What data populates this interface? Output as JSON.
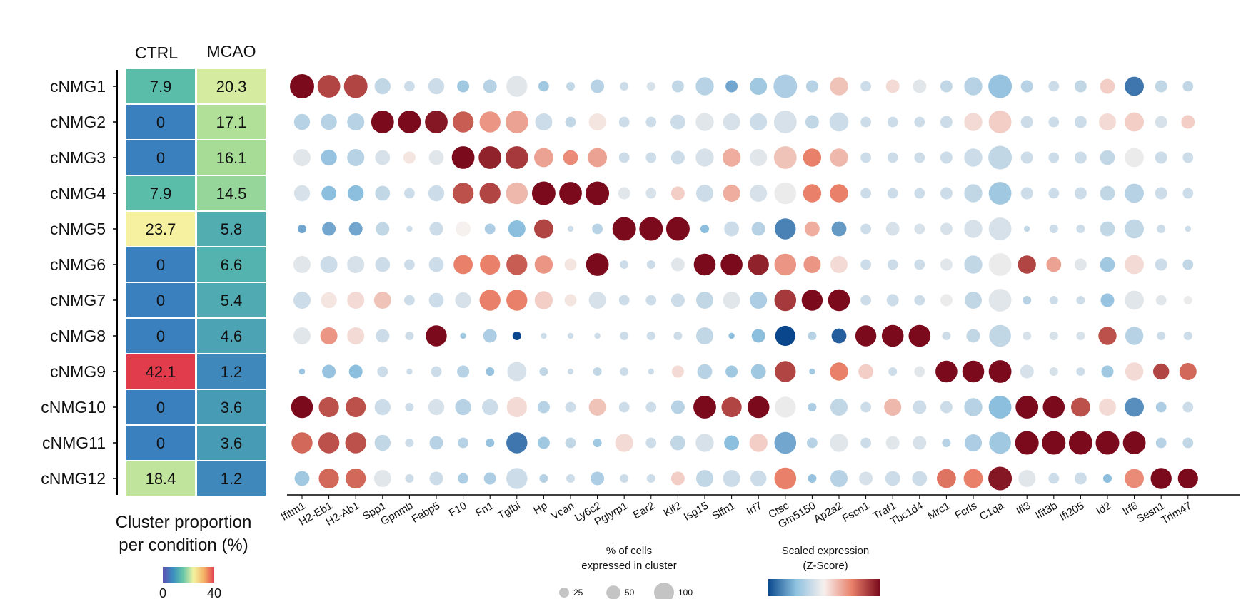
{
  "chart_data": [
    {
      "type": "heatmap",
      "title": "",
      "columns": [
        "CTRL",
        "MCAO"
      ],
      "rows": [
        "cNMG1",
        "cNMG2",
        "cNMG3",
        "cNMG4",
        "cNMG5",
        "cNMG6",
        "cNMG7",
        "cNMG8",
        "cNMG9",
        "cNMG10",
        "cNMG11",
        "cNMG12"
      ],
      "values": [
        [
          "7.9",
          "20.3"
        ],
        [
          "0",
          "17.1"
        ],
        [
          "0",
          "16.1"
        ],
        [
          "7.9",
          "14.5"
        ],
        [
          "23.7",
          "5.8"
        ],
        [
          "0",
          "6.6"
        ],
        [
          "0",
          "5.4"
        ],
        [
          "0",
          "4.6"
        ],
        [
          "42.1",
          "1.2"
        ],
        [
          "0",
          "3.6"
        ],
        [
          "0",
          "3.6"
        ],
        [
          "18.4",
          "1.2"
        ]
      ],
      "xlabel": "Cluster proportion per condition (%)",
      "xlabel_lines": [
        "Cluster proportion",
        "per condition (%)"
      ],
      "colorbar": {
        "min": 0,
        "max": 40,
        "tick_labels": [
          "0",
          "40"
        ]
      }
    },
    {
      "type": "scatter",
      "subtype": "dot-plot",
      "genes": [
        "Ifitm1",
        "H2-Eb1",
        "H2-Ab1",
        "Spp1",
        "Gpnmb",
        "Fabp5",
        "F10",
        "Fn1",
        "Tgfbi",
        "Hp",
        "Vcan",
        "Ly6c2",
        "Pglyrp1",
        "Ear2",
        "Klf2",
        "Isg15",
        "Slfn1",
        "Irf7",
        "Ctsc",
        "Gm5150",
        "Ap2a2",
        "Fscn1",
        "Traf1",
        "Tbc1d4",
        "Mrc1",
        "Fcrls",
        "C1qa",
        "Ifi3",
        "Ifit3b",
        "Ifi205",
        "Id2",
        "Irf8",
        "Sesn1",
        "Trim47"
      ],
      "clusters": [
        "cNMG1",
        "cNMG2",
        "cNMG3",
        "cNMG4",
        "cNMG5",
        "cNMG6",
        "cNMG7",
        "cNMG8",
        "cNMG9",
        "cNMG10",
        "cNMG11",
        "cNMG12"
      ],
      "pct_expressed": [
        [
          80,
          70,
          75,
          35,
          15,
          35,
          20,
          25,
          60,
          15,
          10,
          25,
          10,
          10,
          20,
          45,
          20,
          40,
          75,
          20,
          45,
          15,
          25,
          25,
          20,
          45,
          75,
          20,
          15,
          20,
          30,
          50,
          20,
          15
        ],
        [
          35,
          35,
          40,
          70,
          70,
          70,
          60,
          60,
          70,
          40,
          15,
          40,
          15,
          15,
          30,
          45,
          40,
          40,
          70,
          25,
          50,
          15,
          15,
          15,
          20,
          45,
          70,
          20,
          15,
          20,
          40,
          50,
          20,
          25
        ],
        [
          40,
          35,
          40,
          30,
          20,
          30,
          70,
          70,
          70,
          50,
          30,
          50,
          15,
          15,
          25,
          45,
          45,
          40,
          70,
          45,
          45,
          15,
          15,
          15,
          20,
          45,
          75,
          20,
          15,
          20,
          30,
          50,
          20,
          15
        ],
        [
          35,
          30,
          35,
          30,
          15,
          35,
          60,
          60,
          65,
          75,
          70,
          75,
          20,
          15,
          25,
          40,
          40,
          40,
          65,
          45,
          45,
          15,
          15,
          15,
          20,
          45,
          70,
          20,
          15,
          20,
          30,
          50,
          20,
          15
        ],
        [
          10,
          25,
          25,
          25,
          5,
          25,
          30,
          15,
          40,
          50,
          5,
          15,
          75,
          75,
          75,
          10,
          30,
          25,
          60,
          30,
          30,
          15,
          25,
          15,
          20,
          45,
          70,
          5,
          10,
          10,
          30,
          50,
          10,
          5
        ],
        [
          40,
          40,
          40,
          30,
          15,
          30,
          50,
          55,
          60,
          45,
          20,
          70,
          10,
          10,
          25,
          65,
          65,
          60,
          65,
          40,
          40,
          15,
          15,
          15,
          20,
          45,
          70,
          45,
          30,
          20,
          30,
          50,
          20,
          15
        ],
        [
          40,
          35,
          40,
          40,
          15,
          30,
          35,
          60,
          60,
          45,
          20,
          40,
          15,
          15,
          25,
          40,
          40,
          40,
          65,
          60,
          65,
          15,
          20,
          15,
          20,
          40,
          70,
          10,
          10,
          10,
          25,
          50,
          15,
          10
        ],
        [
          40,
          40,
          40,
          25,
          10,
          60,
          5,
          25,
          10,
          5,
          5,
          5,
          10,
          10,
          10,
          40,
          5,
          25,
          55,
          10,
          30,
          60,
          65,
          65,
          10,
          25,
          65,
          10,
          10,
          10,
          45,
          45,
          10,
          10
        ],
        [
          5,
          25,
          25,
          15,
          5,
          15,
          20,
          10,
          50,
          10,
          5,
          10,
          10,
          5,
          20,
          30,
          20,
          30,
          60,
          5,
          45,
          30,
          10,
          15,
          65,
          65,
          70,
          25,
          10,
          10,
          20,
          45,
          35,
          40
        ],
        [
          65,
          55,
          55,
          35,
          10,
          35,
          35,
          35,
          55,
          20,
          15,
          40,
          15,
          15,
          25,
          70,
          55,
          65,
          60,
          10,
          40,
          15,
          40,
          25,
          20,
          45,
          70,
          70,
          65,
          50,
          40,
          50,
          15,
          15
        ],
        [
          60,
          60,
          60,
          35,
          10,
          25,
          15,
          10,
          60,
          20,
          15,
          10,
          45,
          15,
          30,
          45,
          30,
          45,
          65,
          15,
          45,
          15,
          25,
          25,
          10,
          40,
          65,
          75,
          75,
          75,
          75,
          70,
          15,
          15
        ],
        [
          30,
          55,
          55,
          40,
          10,
          25,
          15,
          20,
          60,
          10,
          10,
          25,
          10,
          10,
          25,
          40,
          40,
          35,
          65,
          10,
          40,
          25,
          30,
          30,
          50,
          50,
          75,
          40,
          15,
          20,
          10,
          50,
          60,
          55
        ]
      ],
      "scaled_expression": [
        [
          2.0,
          1.5,
          1.5,
          -0.5,
          -0.4,
          -0.4,
          -0.8,
          -0.6,
          -0.2,
          -0.8,
          -0.5,
          -0.6,
          -0.4,
          -0.3,
          -0.5,
          -0.6,
          -1.2,
          -0.8,
          -0.7,
          -0.6,
          0.4,
          -0.4,
          0.2,
          -0.2,
          -0.5,
          -0.6,
          -0.9,
          -0.6,
          -0.4,
          -0.5,
          0.3,
          -1.6,
          -0.5,
          -0.5
        ],
        [
          -0.6,
          -0.6,
          -0.6,
          2.0,
          2.0,
          1.9,
          1.3,
          0.8,
          0.7,
          -0.4,
          -0.5,
          0.1,
          -0.4,
          -0.4,
          -0.4,
          -0.2,
          -0.3,
          -0.4,
          -0.3,
          -0.5,
          -0.4,
          -0.4,
          -0.4,
          -0.4,
          -0.4,
          0.2,
          0.3,
          -0.4,
          -0.4,
          -0.4,
          0.2,
          0.3,
          -0.3,
          0.3
        ],
        [
          -0.2,
          -0.9,
          -0.6,
          -0.3,
          0.1,
          -0.2,
          2.0,
          1.8,
          1.6,
          0.7,
          0.9,
          0.7,
          -0.4,
          -0.4,
          -0.4,
          -0.3,
          0.6,
          -0.2,
          0.4,
          1.0,
          0.5,
          -0.4,
          -0.4,
          -0.4,
          -0.4,
          -0.4,
          -0.5,
          -0.4,
          -0.4,
          -0.4,
          -0.5,
          -0.1,
          -0.4,
          -0.4
        ],
        [
          -0.3,
          -1.0,
          -1.0,
          -0.5,
          -0.4,
          -0.4,
          1.4,
          1.5,
          0.5,
          2.0,
          2.0,
          2.0,
          -0.2,
          -0.3,
          0.3,
          -0.4,
          0.6,
          -0.3,
          -0.1,
          1.0,
          1.0,
          -0.4,
          -0.4,
          -0.4,
          -0.4,
          -0.5,
          -0.8,
          -0.4,
          -0.4,
          -0.4,
          -0.5,
          -0.6,
          -0.4,
          -0.4
        ],
        [
          -1.2,
          -1.2,
          -1.2,
          -0.5,
          -0.4,
          -0.4,
          0.0,
          -0.7,
          -1.0,
          1.5,
          -0.4,
          -0.6,
          2.0,
          2.0,
          2.0,
          -1.0,
          -0.4,
          -0.6,
          -1.5,
          0.6,
          -1.3,
          -0.4,
          -0.3,
          -0.3,
          -0.3,
          -0.3,
          -0.3,
          -0.5,
          -0.4,
          -0.4,
          -0.5,
          -0.5,
          -0.4,
          -0.4
        ],
        [
          -0.2,
          -0.4,
          -0.3,
          -0.4,
          -0.4,
          -0.4,
          1.0,
          1.0,
          1.3,
          0.8,
          0.1,
          2.0,
          -0.4,
          -0.4,
          -0.2,
          2.0,
          2.0,
          1.8,
          0.8,
          0.8,
          0.2,
          -0.4,
          -0.4,
          -0.4,
          -0.2,
          -0.5,
          -0.1,
          1.5,
          0.7,
          -0.2,
          -0.8,
          0.2,
          -0.4,
          -0.5
        ],
        [
          -0.4,
          0.1,
          0.2,
          0.4,
          -0.4,
          -0.4,
          -0.3,
          1.0,
          1.0,
          0.3,
          0.1,
          -0.3,
          -0.4,
          -0.4,
          -0.4,
          -0.5,
          -0.2,
          -0.7,
          1.6,
          2.0,
          2.0,
          -0.4,
          -0.4,
          -0.4,
          -0.1,
          -0.5,
          -0.2,
          -0.6,
          -0.4,
          -0.4,
          -0.9,
          -0.2,
          -0.2,
          -0.1
        ],
        [
          -0.2,
          0.8,
          0.2,
          -0.4,
          -0.4,
          2.0,
          -0.8,
          -0.7,
          -2.0,
          -0.4,
          -0.4,
          -0.4,
          -0.4,
          -0.4,
          -0.4,
          -0.5,
          -1.0,
          -1.0,
          -2.0,
          -0.6,
          -1.8,
          2.0,
          2.0,
          2.0,
          -0.4,
          -0.5,
          -0.5,
          -0.3,
          -0.3,
          -0.3,
          1.4,
          -0.6,
          -0.4,
          -0.4
        ],
        [
          -0.9,
          -0.9,
          -1.0,
          -0.4,
          -0.4,
          -0.4,
          -0.6,
          -0.9,
          -0.3,
          -0.5,
          -0.4,
          -0.5,
          -0.4,
          -0.4,
          0.2,
          -0.6,
          -0.8,
          -0.8,
          1.5,
          -0.8,
          1.0,
          0.3,
          -0.4,
          -0.2,
          2.0,
          2.0,
          2.0,
          -0.3,
          -0.3,
          -0.4,
          -0.8,
          0.2,
          1.5,
          1.2
        ],
        [
          2.0,
          1.4,
          1.4,
          -0.4,
          -0.4,
          -0.3,
          -0.6,
          -0.4,
          0.2,
          -0.6,
          -0.4,
          0.4,
          -0.4,
          -0.4,
          -0.6,
          2.0,
          1.5,
          2.0,
          -0.1,
          -0.7,
          -0.5,
          -0.4,
          0.5,
          -0.4,
          -0.4,
          -0.6,
          -1.0,
          2.0,
          2.0,
          1.4,
          0.2,
          -1.4,
          -0.7,
          -0.4
        ],
        [
          1.2,
          1.4,
          1.4,
          -0.5,
          -0.4,
          -0.6,
          -0.6,
          -0.9,
          -1.6,
          -0.8,
          -0.5,
          -0.8,
          0.2,
          -0.4,
          -0.5,
          -0.3,
          -1.0,
          0.3,
          -1.2,
          -0.6,
          -0.2,
          -0.4,
          -0.2,
          -0.3,
          -0.6,
          -0.7,
          -0.8,
          2.0,
          2.0,
          2.0,
          2.0,
          2.0,
          -0.6,
          -0.5
        ],
        [
          -0.8,
          1.2,
          1.2,
          -0.2,
          -0.4,
          -0.4,
          -0.7,
          -0.7,
          -0.4,
          -0.6,
          -0.4,
          -0.7,
          -0.4,
          -0.4,
          0.3,
          -0.5,
          -0.4,
          -0.4,
          1.0,
          -0.9,
          -0.6,
          -0.3,
          -0.4,
          -0.4,
          1.1,
          1.0,
          1.9,
          -0.2,
          -0.4,
          -0.4,
          -1.0,
          0.9,
          2.0,
          2.0
        ]
      ],
      "size_legend": {
        "title_lines": [
          "% of cells",
          "expressed in cluster"
        ],
        "values": [
          25,
          50,
          100
        ],
        "labels": [
          "25",
          "50",
          "100"
        ]
      },
      "color_legend": {
        "title_lines": [
          "Scaled expression",
          "(Z-Score)"
        ],
        "min": -2,
        "max": 2
      }
    }
  ]
}
